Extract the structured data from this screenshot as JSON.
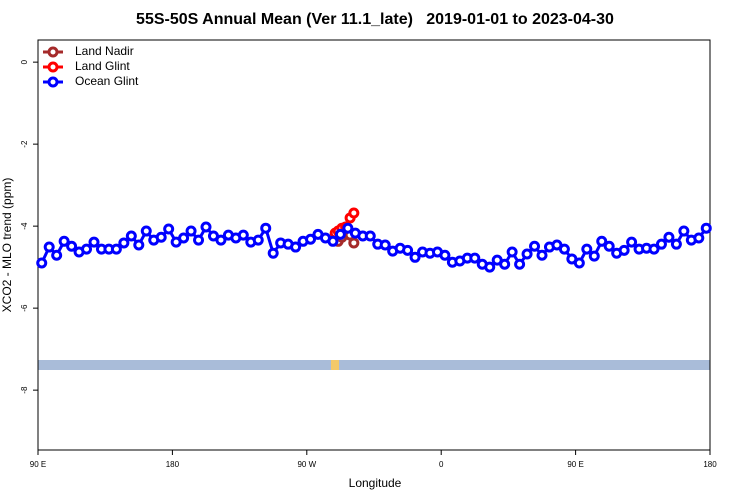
{
  "chart_data": {
    "type": "line",
    "title": "55S-50S Annual Mean (Ver 11.1_late)   2019-01-01 to 2023-04-30",
    "x_label": "Longitude",
    "y_label": "XCO2 - MLO trend (ppm)",
    "xlim": [
      90,
      540
    ],
    "ylim": [
      -9.46,
      0.54
    ],
    "xticks": [
      {
        "value": 90,
        "label": "90 E"
      },
      {
        "value": 180,
        "label": "180"
      },
      {
        "value": 270,
        "label": "90 W"
      },
      {
        "value": 360,
        "label": "0"
      },
      {
        "value": 450,
        "label": "90 E"
      },
      {
        "value": 540,
        "label": "180"
      }
    ],
    "yticks": [
      0,
      -2,
      -4,
      -6,
      -8
    ],
    "legend": "top-left",
    "series": [
      {
        "name": "Land Nadir",
        "color": "#a52a2a",
        "x": [
          291,
          293.5,
          296,
          299,
          301.5
        ],
        "values": [
          -4.37,
          -4.27,
          -4.07,
          -4.22,
          -4.41
        ]
      },
      {
        "name": "Land Glint",
        "color": "#ff0000",
        "x": [
          289,
          291,
          293.5,
          296,
          299,
          301.5
        ],
        "values": [
          -4.17,
          -4.12,
          -4.05,
          -4.02,
          -3.8,
          -3.68
        ]
      },
      {
        "name": "Ocean Glint",
        "color": "#0000ff",
        "x": [
          92.5,
          97.5,
          102.5,
          107.5,
          112.5,
          117.5,
          122.5,
          127.5,
          132.5,
          137.5,
          142.5,
          147.5,
          152.5,
          157.5,
          162.5,
          167.5,
          172.5,
          177.5,
          182.5,
          187.5,
          192.5,
          197.5,
          202.5,
          207.5,
          212.5,
          217.5,
          222.5,
          227.5,
          232.5,
          237.5,
          242.5,
          247.5,
          252.5,
          257.5,
          262.5,
          267.5,
          272.5,
          277.5,
          282.5,
          287.5,
          292.5,
          297.5,
          302.5,
          307.5,
          312.5,
          317.5,
          322.5,
          327.5,
          332.5,
          337.5,
          342.5,
          347.5,
          352.5,
          357.5,
          362.5,
          367.5,
          372.5,
          377.5,
          382.5,
          387.5,
          392.5,
          397.5,
          402.5,
          407.5,
          412.5,
          417.5,
          422.5,
          427.5,
          432.5,
          437.5,
          442.5,
          447.5,
          452.5,
          457.5,
          462.5,
          467.5,
          472.5,
          477.5,
          482.5,
          487.5,
          492.5,
          497.5,
          502.5,
          507.5,
          512.5,
          517.5,
          522.5,
          527.5,
          532.5,
          537.5
        ],
        "values": [
          -4.9,
          -4.51,
          -4.71,
          -4.37,
          -4.49,
          -4.63,
          -4.56,
          -4.39,
          -4.56,
          -4.56,
          -4.56,
          -4.41,
          -4.24,
          -4.46,
          -4.12,
          -4.34,
          -4.27,
          -4.07,
          -4.39,
          -4.29,
          -4.12,
          -4.34,
          -4.02,
          -4.24,
          -4.34,
          -4.22,
          -4.29,
          -4.22,
          -4.39,
          -4.34,
          -4.05,
          -4.66,
          -4.41,
          -4.44,
          -4.51,
          -4.37,
          -4.32,
          -4.2,
          -4.29,
          -4.37,
          -4.2,
          -4.05,
          -4.17,
          -4.24,
          -4.24,
          -4.44,
          -4.46,
          -4.61,
          -4.54,
          -4.59,
          -4.76,
          -4.63,
          -4.66,
          -4.63,
          -4.71,
          -4.88,
          -4.85,
          -4.78,
          -4.78,
          -4.93,
          -5.0,
          -4.83,
          -4.93,
          -4.63,
          -4.93,
          -4.68,
          -4.49,
          -4.71,
          -4.51,
          -4.46,
          -4.56,
          -4.8,
          -4.9,
          -4.56,
          -4.73,
          -4.37,
          -4.49,
          -4.66,
          -4.59,
          -4.39,
          -4.56,
          -4.54,
          -4.56,
          -4.44,
          -4.27,
          -4.44,
          -4.12,
          -4.34,
          -4.29,
          -4.05
        ]
      }
    ]
  }
}
